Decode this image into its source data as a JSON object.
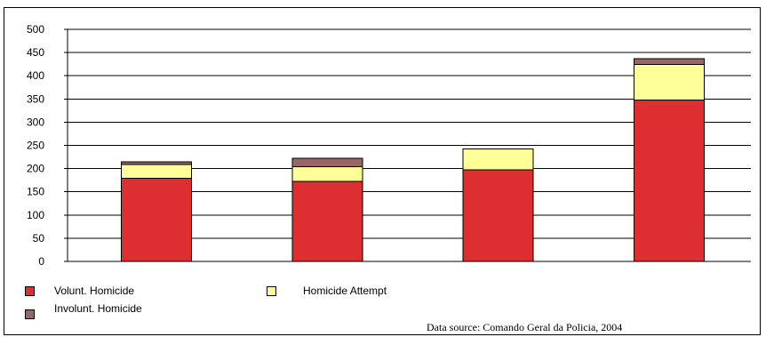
{
  "chart_data": {
    "type": "bar",
    "stacked": true,
    "title": "",
    "xlabel": "",
    "ylabel": "",
    "categories": [
      "",
      "",
      "",
      ""
    ],
    "ylim": [
      0,
      500
    ],
    "yticks": [
      0,
      50,
      100,
      150,
      200,
      250,
      300,
      350,
      400,
      450,
      500
    ],
    "grid": true,
    "legend_position": "bottom",
    "series": [
      {
        "name": "Volunt. Homicide",
        "color": "#dd2e32",
        "values": [
          179,
          172,
          197,
          348
        ]
      },
      {
        "name": "Homicide Attempt",
        "color": "#ffff99",
        "values": [
          30,
          32,
          45,
          76
        ]
      },
      {
        "name": "Involunt. Homicide",
        "color": "#996666",
        "values": [
          6,
          18,
          0,
          13
        ]
      }
    ]
  },
  "source_note": "Data source: Comando Geral da Policia, 2004"
}
